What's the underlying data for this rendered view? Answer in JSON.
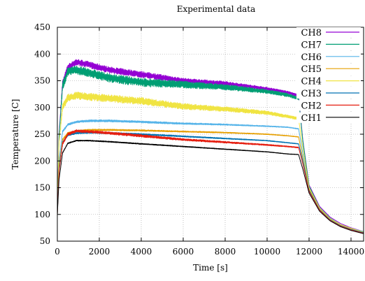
{
  "chart_data": {
    "type": "line",
    "title": "Experimental data",
    "xlabel": "Time [s]",
    "ylabel": "Temperature [C]",
    "xlim": [
      0,
      14600
    ],
    "ylim": [
      50,
      450
    ],
    "xticks": [
      0,
      2000,
      4000,
      6000,
      8000,
      10000,
      12000,
      14000
    ],
    "yticks": [
      50,
      100,
      150,
      200,
      250,
      300,
      350,
      400,
      450
    ],
    "grid": true,
    "legend_position": "top-right",
    "series": [
      {
        "name": "CH8",
        "color": "#9400d3",
        "noise": 12,
        "x": [
          0,
          80,
          250,
          500,
          900,
          1500,
          2500,
          4000,
          6000,
          8000,
          10000,
          11000,
          11500,
          11700,
          12000,
          12500,
          13000,
          13500,
          14000,
          14600
        ],
        "y": [
          100,
          250,
          345,
          375,
          385,
          380,
          370,
          362,
          350,
          345,
          335,
          328,
          322,
          240,
          155,
          115,
          95,
          83,
          75,
          68
        ]
      },
      {
        "name": "CH7",
        "color": "#009e73",
        "noise": 16,
        "x": [
          0,
          80,
          250,
          500,
          900,
          1500,
          2500,
          4000,
          6000,
          8000,
          10000,
          11000,
          11500,
          11700,
          12000,
          12500,
          13000,
          13500,
          14000,
          14600
        ],
        "y": [
          100,
          245,
          340,
          368,
          370,
          365,
          355,
          347,
          343,
          338,
          330,
          323,
          317,
          238,
          153,
          113,
          93,
          81,
          74,
          67
        ]
      },
      {
        "name": "CH6",
        "color": "#56b4e9",
        "noise": 4,
        "x": [
          0,
          80,
          250,
          500,
          900,
          1500,
          2500,
          4000,
          6000,
          8000,
          10000,
          11000,
          11500,
          11700,
          12000,
          12500,
          13000,
          13500,
          14000,
          14600
        ],
        "y": [
          100,
          200,
          255,
          268,
          273,
          275,
          275,
          273,
          270,
          268,
          265,
          263,
          260,
          215,
          150,
          112,
          92,
          81,
          74,
          68
        ]
      },
      {
        "name": "CH5",
        "color": "#e69f00",
        "noise": 3,
        "x": [
          0,
          80,
          250,
          500,
          900,
          1500,
          2500,
          4000,
          6000,
          8000,
          10000,
          11000,
          11500,
          11700,
          12000,
          12500,
          13000,
          13500,
          14000,
          14600
        ],
        "y": [
          100,
          190,
          240,
          252,
          256,
          258,
          258,
          257,
          255,
          253,
          250,
          247,
          245,
          205,
          147,
          110,
          91,
          80,
          73,
          67
        ]
      },
      {
        "name": "CH4",
        "color": "#f0e442",
        "noise": 14,
        "x": [
          0,
          80,
          250,
          500,
          900,
          1500,
          2500,
          4000,
          6000,
          8000,
          10000,
          11000,
          11500,
          11700,
          12000,
          12500,
          13000,
          13500,
          14000,
          14600
        ],
        "y": [
          100,
          235,
          300,
          318,
          322,
          320,
          317,
          312,
          302,
          297,
          290,
          283,
          279,
          225,
          150,
          112,
          92,
          81,
          74,
          67
        ]
      },
      {
        "name": "CH3",
        "color": "#0072b2",
        "noise": 3,
        "x": [
          0,
          80,
          250,
          500,
          900,
          1500,
          2500,
          4000,
          6000,
          8000,
          10000,
          11000,
          11500,
          11700,
          12000,
          12500,
          13000,
          13500,
          14000,
          14600
        ],
        "y": [
          100,
          185,
          235,
          248,
          252,
          253,
          252,
          250,
          246,
          242,
          238,
          234,
          232,
          200,
          145,
          109,
          90,
          79,
          72,
          66
        ]
      },
      {
        "name": "CH2",
        "color": "#e51e10",
        "noise": 5,
        "x": [
          0,
          80,
          250,
          500,
          900,
          1500,
          2500,
          4000,
          6000,
          8000,
          10000,
          11000,
          11500,
          11700,
          12000,
          12500,
          13000,
          13500,
          14000,
          14600
        ],
        "y": [
          100,
          180,
          232,
          250,
          256,
          255,
          252,
          247,
          240,
          235,
          230,
          227,
          225,
          195,
          143,
          108,
          89,
          78,
          71,
          65
        ]
      },
      {
        "name": "CH1",
        "color": "#000000",
        "noise": 2,
        "x": [
          0,
          80,
          250,
          500,
          900,
          1500,
          2500,
          4000,
          6000,
          8000,
          10000,
          11000,
          11500,
          11700,
          12000,
          12500,
          13000,
          13500,
          14000,
          14600
        ],
        "y": [
          100,
          165,
          215,
          233,
          238,
          238,
          236,
          232,
          227,
          222,
          217,
          213,
          212,
          185,
          140,
          106,
          88,
          77,
          70,
          64
        ]
      }
    ]
  }
}
